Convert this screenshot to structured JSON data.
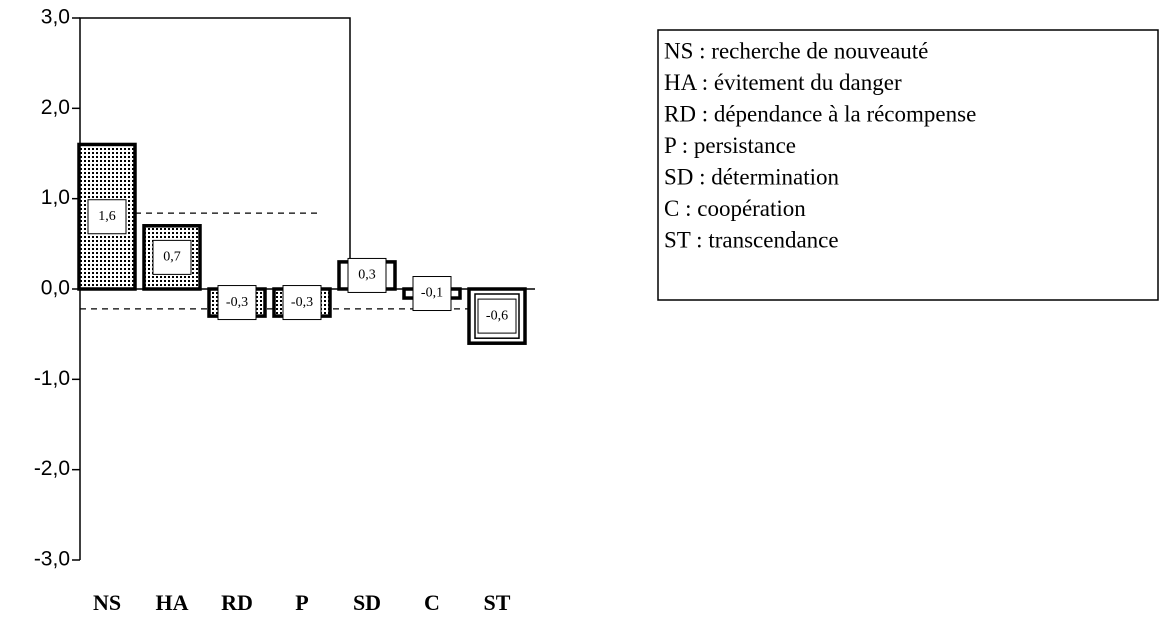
{
  "chart_data": {
    "type": "bar",
    "categories": [
      "NS",
      "HA",
      "RD",
      "P",
      "SD",
      "C",
      "ST"
    ],
    "values": [
      1.6,
      0.7,
      -0.3,
      -0.3,
      0.3,
      -0.1,
      -0.6
    ],
    "value_labels": [
      "1,6",
      "0,7",
      "-0,3",
      "-0,3",
      "0,3",
      "-0,1",
      "-0,6"
    ],
    "color": "#000000",
    "ylim": [
      -3,
      3
    ],
    "yticks": [
      {
        "value": -3,
        "label": "-3,0"
      },
      {
        "value": -2,
        "label": "-2,0"
      },
      {
        "value": -1,
        "label": "-1,0"
      },
      {
        "value": 0,
        "label": "0,0"
      },
      {
        "value": 1,
        "label": "1,0"
      },
      {
        "value": 2,
        "label": "2,0"
      },
      {
        "value": 3,
        "label": "3,0"
      }
    ],
    "reference_lines": [
      0.84,
      -0.22
    ],
    "legend": [
      "NS : recherche de nouveauté",
      "HA : évitement du danger",
      "RD : dépendance à la récompense",
      "P : persistance",
      "SD : détermination",
      "C : coopération",
      "ST : transcendance"
    ]
  }
}
